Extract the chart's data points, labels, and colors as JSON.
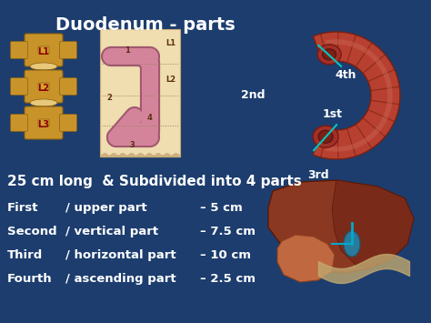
{
  "title": "Duodenum - parts",
  "bg_color": "#1c3d6e",
  "title_color": "#ffffff",
  "title_fontsize": 14,
  "text_color": "#ffffff",
  "subtitle": "25 cm long  & Subdivided into 4 parts",
  "subtitle_fontsize": 11,
  "parts": [
    {
      "name": "First",
      "slash": "/ upper part",
      "measure": "– 5 cm"
    },
    {
      "name": "Second",
      "slash": "/ vertical part",
      "measure": "– 7.5 cm"
    },
    {
      "name": "Third",
      "slash": "/ horizontal part",
      "measure": "– 10 cm"
    },
    {
      "name": "Fourth",
      "slash": "/ ascending part",
      "measure": "– 2.5 cm"
    }
  ],
  "part_labels": [
    "1st",
    "2nd",
    "3rd",
    "4th"
  ],
  "vertebra_labels": [
    "L1",
    "L2",
    "L3"
  ],
  "diagram_labels": [
    "L1",
    "L2"
  ],
  "diagram_numbers": [
    "1",
    "2",
    "3",
    "4"
  ],
  "tube_color": "#d4849a",
  "tube_edge_color": "#a05870",
  "box_color": "#f0ddb0",
  "box_edge_color": "#c8aa78",
  "duod_color": "#b84030",
  "duod_highlight": "#d06050",
  "duod_edge": "#7a2010",
  "cyan_color": "#00c8c0",
  "liver_color": "#8b3520",
  "liver_edge": "#5a1a08"
}
